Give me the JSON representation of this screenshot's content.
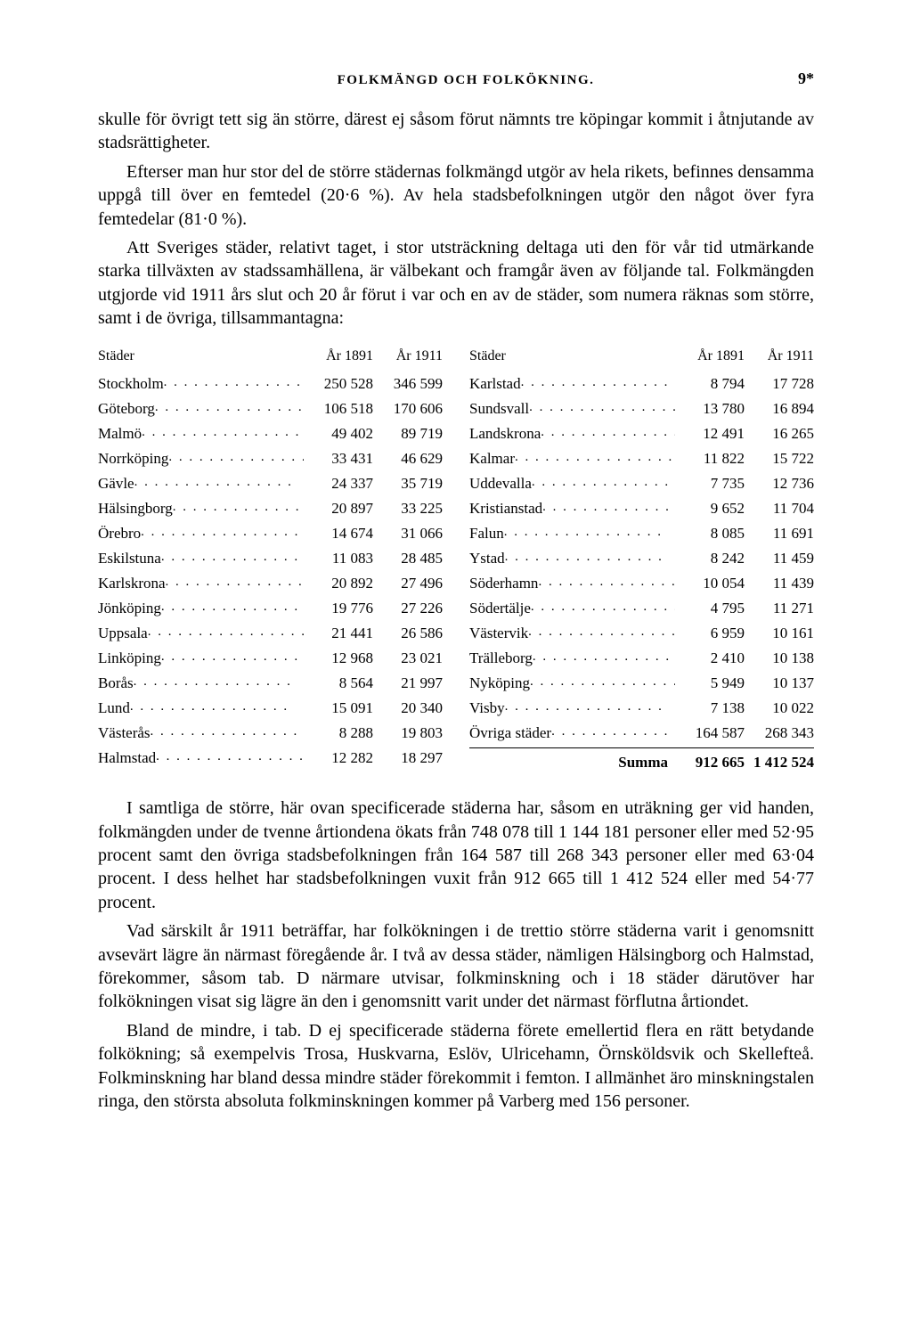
{
  "header": {
    "title": "FOLKMÄNGD OCH FOLKÖKNING.",
    "page_number": "9*"
  },
  "paragraphs": {
    "p1": "skulle för övrigt tett sig än större, därest ej såsom förut nämnts tre köpingar kommit i åtnjutande av stadsrättigheter.",
    "p2": "Efterser man hur stor del de större städernas folkmängd utgör av hela rikets, befinnes densamma uppgå till över en femtedel (20·6 %). Av hela stadsbefolkningen utgör den något över fyra femtedelar (81·0 %).",
    "p3": "Att Sveriges städer, relativt taget, i stor utsträckning deltaga uti den för vår tid utmärkande starka tillväxten av stadssamhällena, är välbekant och framgår även av följande tal. Folkmängden utgjorde vid 1911 års slut och 20 år förut i var och en av de städer, som numera räknas som större, samt i de övriga, tillsammantagna:",
    "p4": "I samtliga de större, här ovan specificerade städerna har, såsom en uträkning ger vid handen, folkmängden under de tvenne årtiondena ökats från 748 078 till 1 144 181 personer eller med 52·95 procent samt den övriga stadsbefolkningen från 164 587 till 268 343 personer eller med 63·04 procent. I dess helhet har stadsbefolkningen vuxit från 912 665 till 1 412 524 eller med 54·77 procent.",
    "p5": "Vad särskilt år 1911 beträffar, har folkökningen i de trettio större städerna varit i genomsnitt avsevärt lägre än närmast föregående år. I två av dessa städer, nämligen Hälsingborg och Halmstad, förekommer, såsom tab. D närmare utvisar, folkminskning och i 18 städer därutöver har folkökningen visat sig lägre än den i genomsnitt varit under det närmast förflutna årtiondet.",
    "p6": "Bland de mindre, i tab. D ej specificerade städerna förete emellertid flera en rätt betydande folkökning; så exempelvis Trosa, Huskvarna, Eslöv, Ulricehamn, Örnsköldsvik och Skellefteå. Folkminskning har bland dessa mindre städer förekommit i femton. I allmänhet äro minskningstalen ringa, den största absoluta folkminskningen kommer på Varberg med 156 personer."
  },
  "table": {
    "headers": {
      "city": "Städer",
      "y1891": "År 1891",
      "y1911": "År 1911"
    },
    "left": [
      {
        "name": "Stockholm",
        "y1891": "250 528",
        "y1911": "346 599"
      },
      {
        "name": "Göteborg",
        "y1891": "106 518",
        "y1911": "170 606"
      },
      {
        "name": "Malmö",
        "y1891": "49 402",
        "y1911": "89 719"
      },
      {
        "name": "Norrköping",
        "y1891": "33 431",
        "y1911": "46 629"
      },
      {
        "name": "Gävle",
        "y1891": "24 337",
        "y1911": "35 719"
      },
      {
        "name": "Hälsingborg",
        "y1891": "20 897",
        "y1911": "33 225"
      },
      {
        "name": "Örebro",
        "y1891": "14 674",
        "y1911": "31 066"
      },
      {
        "name": "Eskilstuna",
        "y1891": "11 083",
        "y1911": "28 485"
      },
      {
        "name": "Karlskrona",
        "y1891": "20 892",
        "y1911": "27 496"
      },
      {
        "name": "Jönköping",
        "y1891": "19 776",
        "y1911": "27 226"
      },
      {
        "name": "Uppsala",
        "y1891": "21 441",
        "y1911": "26 586"
      },
      {
        "name": "Linköping",
        "y1891": "12 968",
        "y1911": "23 021"
      },
      {
        "name": "Borås",
        "y1891": "8 564",
        "y1911": "21 997"
      },
      {
        "name": "Lund",
        "y1891": "15 091",
        "y1911": "20 340"
      },
      {
        "name": "Västerås",
        "y1891": "8 288",
        "y1911": "19 803"
      },
      {
        "name": "Halmstad",
        "y1891": "12 282",
        "y1911": "18 297"
      }
    ],
    "right": [
      {
        "name": "Karlstad",
        "y1891": "8 794",
        "y1911": "17 728"
      },
      {
        "name": "Sundsvall",
        "y1891": "13 780",
        "y1911": "16 894"
      },
      {
        "name": "Landskrona",
        "y1891": "12 491",
        "y1911": "16 265"
      },
      {
        "name": "Kalmar",
        "y1891": "11 822",
        "y1911": "15 722"
      },
      {
        "name": "Uddevalla",
        "y1891": "7 735",
        "y1911": "12 736"
      },
      {
        "name": "Kristianstad",
        "y1891": "9 652",
        "y1911": "11 704"
      },
      {
        "name": "Falun",
        "y1891": "8 085",
        "y1911": "11 691"
      },
      {
        "name": "Ystad",
        "y1891": "8 242",
        "y1911": "11 459"
      },
      {
        "name": "Söderhamn",
        "y1891": "10 054",
        "y1911": "11 439"
      },
      {
        "name": "Södertälje",
        "y1891": "4 795",
        "y1911": "11 271"
      },
      {
        "name": "Västervik",
        "y1891": "6 959",
        "y1911": "10 161"
      },
      {
        "name": "Trälleborg",
        "y1891": "2 410",
        "y1911": "10 138"
      },
      {
        "name": "Nyköping",
        "y1891": "5 949",
        "y1911": "10 137"
      },
      {
        "name": "Visby",
        "y1891": "7 138",
        "y1911": "10 022"
      },
      {
        "name": "Övriga städer",
        "y1891": "164 587",
        "y1911": "268 343"
      }
    ],
    "summa": {
      "label": "Summa",
      "y1891": "912 665",
      "y1911": "1 412 524"
    }
  }
}
